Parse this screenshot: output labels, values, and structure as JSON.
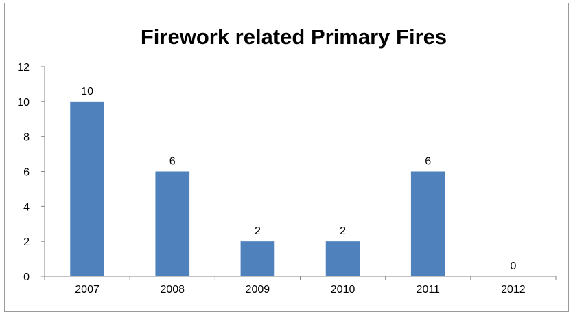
{
  "chart_data": {
    "type": "bar",
    "title": "Firework related Primary Fires",
    "xlabel": "",
    "ylabel": "",
    "categories": [
      "2007",
      "2008",
      "2009",
      "2010",
      "2011",
      "2012"
    ],
    "values": [
      10,
      6,
      2,
      2,
      6,
      0
    ],
    "ylim": [
      0,
      12
    ],
    "yticks": [
      0,
      2,
      4,
      6,
      8,
      10,
      12
    ],
    "data_labels": true,
    "grid": false,
    "legend": "none",
    "colors": {
      "bar": "#4f81bd",
      "axis": "#868686",
      "frame": "#9a9a9a"
    }
  }
}
